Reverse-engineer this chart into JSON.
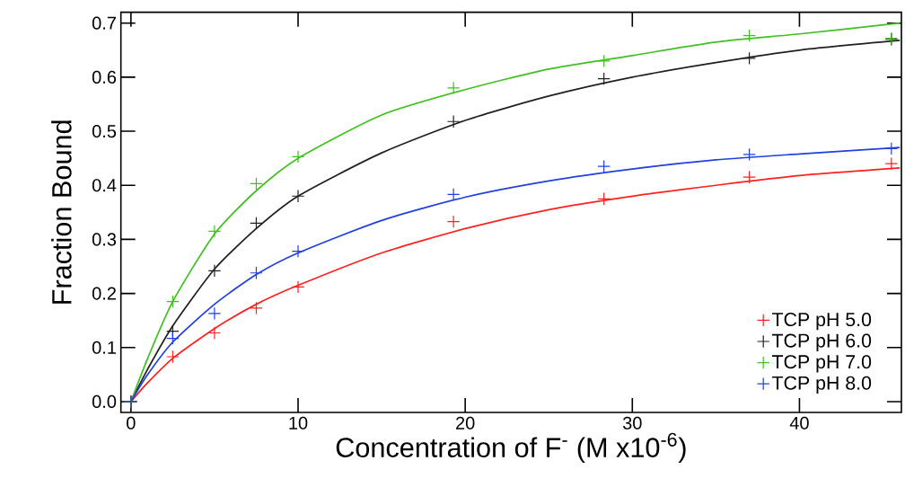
{
  "chart_data": {
    "type": "scatter",
    "xlabel": "Concentration of F$^{-}$ (M x10$^{-6}$)",
    "ylabel": "Fraction Bound",
    "xlim": [
      -0.6,
      46.1
    ],
    "ylim": [
      -0.02,
      0.72
    ],
    "xticks": [
      0,
      10,
      20,
      30,
      40
    ],
    "yticks": [
      {
        "value": 0,
        "label": "0.0"
      },
      0.1,
      0.2,
      0.3,
      0.4,
      0.5,
      0.6,
      0.7
    ],
    "grid": false,
    "legend": "bottom right",
    "marker": "cross",
    "x": [
      0,
      2.5,
      5,
      7.5,
      10,
      19.3,
      28.3,
      37,
      45.5
    ],
    "series": [
      {
        "name": "TCP pH 5.0",
        "color": "#ff2020",
        "values": [
          0,
          0.083,
          0.127,
          0.173,
          0.212,
          0.333,
          0.375,
          0.415,
          0.44
        ]
      },
      {
        "name": "TCP pH 6.0",
        "color": "#202020",
        "values": [
          0,
          0.13,
          0.242,
          0.33,
          0.38,
          0.518,
          0.597,
          0.635,
          0.67
        ]
      },
      {
        "name": "TCP pH 7.0",
        "color": "#40c020",
        "values": [
          0,
          0.185,
          0.315,
          0.403,
          0.453,
          0.58,
          0.63,
          0.677,
          0.672
        ]
      },
      {
        "name": "TCP pH 8.0",
        "color": "#2040e0",
        "values": [
          0,
          0.117,
          0.163,
          0.238,
          0.278,
          0.383,
          0.435,
          0.457,
          0.468
        ]
      },
      {
        "type": "line",
        "color": "#ff2020",
        "marker": "none",
        "x": [
          0,
          1,
          2.5,
          5,
          7.5,
          10,
          15,
          20,
          25,
          30,
          35,
          40,
          46
        ],
        "values": [
          0,
          0.035,
          0.08,
          0.135,
          0.18,
          0.215,
          0.275,
          0.32,
          0.355,
          0.38,
          0.4,
          0.418,
          0.432
        ]
      },
      {
        "type": "line",
        "color": "#202020",
        "marker": "none",
        "x": [
          0,
          1,
          2.5,
          5,
          7.5,
          10,
          15,
          20,
          25,
          30,
          35,
          40,
          46
        ],
        "values": [
          0,
          0.06,
          0.14,
          0.245,
          0.32,
          0.38,
          0.46,
          0.52,
          0.565,
          0.6,
          0.627,
          0.65,
          0.668
        ]
      },
      {
        "type": "line",
        "color": "#40c020",
        "marker": "none",
        "x": [
          0,
          1,
          2.5,
          5,
          7.5,
          10,
          15,
          20,
          25,
          30,
          35,
          40,
          46
        ],
        "values": [
          0,
          0.08,
          0.185,
          0.31,
          0.39,
          0.45,
          0.53,
          0.577,
          0.615,
          0.64,
          0.665,
          0.68,
          0.7
        ]
      },
      {
        "type": "line",
        "color": "#2040e0",
        "marker": "none",
        "x": [
          0,
          1,
          2.5,
          5,
          7.5,
          10,
          15,
          20,
          25,
          30,
          35,
          40,
          46
        ],
        "values": [
          0,
          0.05,
          0.11,
          0.18,
          0.235,
          0.275,
          0.335,
          0.378,
          0.408,
          0.43,
          0.447,
          0.458,
          0.47
        ]
      }
    ]
  }
}
